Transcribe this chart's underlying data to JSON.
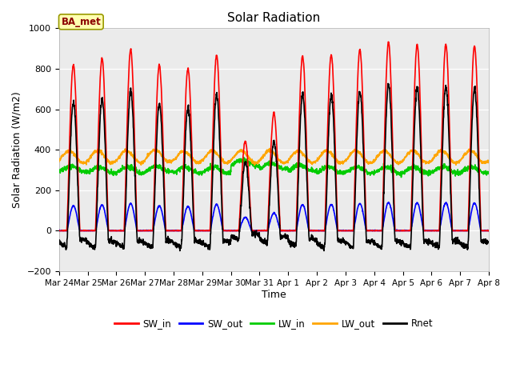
{
  "title": "Solar Radiation",
  "xlabel": "Time",
  "ylabel": "Solar Radiation (W/m2)",
  "ylim": [
    -200,
    1000
  ],
  "yticks": [
    -200,
    0,
    200,
    400,
    600,
    800,
    1000
  ],
  "bg_color": "#ebebeb",
  "legend_label": "BA_met",
  "series": {
    "SW_in": {
      "color": "#ff0000",
      "lw": 1.2
    },
    "SW_out": {
      "color": "#0000ff",
      "lw": 1.2
    },
    "LW_in": {
      "color": "#00cc00",
      "lw": 1.2
    },
    "LW_out": {
      "color": "#ffa500",
      "lw": 1.2
    },
    "Rnet": {
      "color": "#000000",
      "lw": 1.2
    }
  },
  "x_tick_labels": [
    "Mar 24",
    "Mar 25",
    "Mar 26",
    "Mar 27",
    "Mar 28",
    "Mar 29",
    "Mar 30",
    "Mar 31",
    "Apr 1",
    "Apr 2",
    "Apr 3",
    "Apr 4",
    "Apr 5",
    "Apr 6",
    "Apr 7",
    "Apr 8"
  ],
  "n_days": 15,
  "pts_per_day": 144,
  "day_peaks_sw_in": [
    820,
    850,
    895,
    820,
    800,
    865,
    440,
    580,
    860,
    870,
    895,
    930,
    920,
    920,
    910
  ],
  "lw_in_base": 300,
  "lw_out_base": 365
}
